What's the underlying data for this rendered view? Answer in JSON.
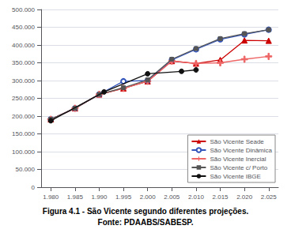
{
  "chart_data": {
    "type": "line",
    "title": "Figura 4.1 - São Vicente segundo diferentes projeções.",
    "annotations": [
      "Fonte: PDAABS/SABESP."
    ],
    "xlim": [
      1978,
      2027
    ],
    "xticks": [
      {
        "value": 1980,
        "label": "1.980"
      },
      {
        "value": 1985,
        "label": "1.985"
      },
      {
        "value": 1990,
        "label": "1.990"
      },
      {
        "value": 1995,
        "label": "1.995"
      },
      {
        "value": 2000,
        "label": "2.000"
      },
      {
        "value": 2005,
        "label": "2.005"
      },
      {
        "value": 2010,
        "label": "2.010"
      },
      {
        "value": 2015,
        "label": "2.015"
      },
      {
        "value": 2020,
        "label": "2.020"
      },
      {
        "value": 2025,
        "label": "2.025"
      }
    ],
    "ylim": [
      0,
      500000
    ],
    "yticks": [
      0,
      {
        "value": 50000,
        "label": "50.000"
      },
      {
        "value": 100000,
        "label": "100.000"
      },
      {
        "value": 150000,
        "label": "150.000"
      },
      {
        "value": 200000,
        "label": "200.000"
      },
      {
        "value": 250000,
        "label": "250.000"
      },
      {
        "value": 300000,
        "label": "300.000"
      },
      {
        "value": 350000,
        "label": "350.000"
      },
      {
        "value": 400000,
        "label": "400.000"
      },
      {
        "value": 450000,
        "label": "450.000"
      },
      {
        "value": 500000,
        "label": "500.000"
      }
    ],
    "grid": true,
    "legend": "lower right",
    "series": [
      {
        "name": "São Vicente Seade",
        "color": "#cc0000",
        "marker": "triangle",
        "x": [
          1980,
          1985,
          1990,
          1995,
          2000,
          2005,
          2010,
          2015,
          2020,
          2025
        ],
        "values": [
          191000,
          222000,
          261000,
          278000,
          298000,
          355000,
          348000,
          358000,
          413000,
          412000
        ]
      },
      {
        "name": "São Vicente Dinâmica",
        "color": "#3355bb",
        "marker": "open-circle",
        "x": [
          1980,
          1985,
          1990,
          1995,
          2000,
          2005,
          2010,
          2015,
          2020,
          2025
        ],
        "values": [
          191000,
          222000,
          261000,
          298000,
          300000,
          358000,
          388000,
          416000,
          430000,
          443000
        ]
      },
      {
        "name": "São Vicente Inercial",
        "color": "#ee6666",
        "marker": "plus",
        "x": [
          1980,
          1985,
          1990,
          1995,
          2000,
          2005,
          2010,
          2015,
          2020,
          2025
        ],
        "values": [
          191000,
          222000,
          261000,
          278000,
          298000,
          355000,
          348000,
          350000,
          360000,
          368000
        ]
      },
      {
        "name": "São Vicente c/ Porto",
        "color": "#555555",
        "marker": "square",
        "x": [
          1980,
          1985,
          1990,
          1995,
          2000,
          2005,
          2010,
          2015,
          2020,
          2025
        ],
        "values": [
          191000,
          222000,
          261000,
          280000,
          302000,
          360000,
          390000,
          418000,
          432000,
          443000
        ]
      },
      {
        "name": "São Vicente IBGE",
        "color": "#111111",
        "marker": "circle",
        "x": [
          1980,
          1991,
          2000,
          2007,
          2010
        ],
        "values": [
          187000,
          268000,
          319000,
          326000,
          330000
        ]
      }
    ]
  }
}
